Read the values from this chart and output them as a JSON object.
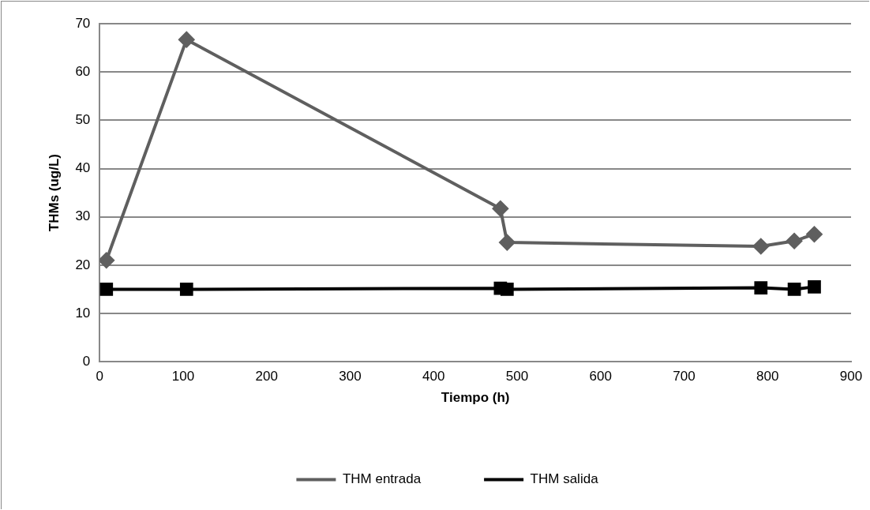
{
  "chart_data": {
    "type": "line",
    "xlabel": "Tiempo (h)",
    "ylabel": "THMs (ug/L)",
    "xlim": [
      0,
      900
    ],
    "xticks": [
      0,
      100,
      200,
      300,
      400,
      500,
      600,
      700,
      800,
      900
    ],
    "ylim": [
      0,
      70
    ],
    "yticks": [
      0,
      10,
      20,
      30,
      40,
      50,
      60,
      70
    ],
    "grid": "y",
    "legend": "bottom",
    "line_style": "solid",
    "series": [
      {
        "name": "THM entrada",
        "color": "#5f5f5f",
        "marker": "diamond",
        "x": [
          8,
          104,
          480,
          488,
          792,
          832,
          856
        ],
        "values": [
          21,
          66.7,
          31.7,
          24.7,
          23.9,
          25,
          26.4
        ]
      },
      {
        "name": "THM salida",
        "color": "#000000",
        "marker": "square",
        "x": [
          8,
          104,
          480,
          488,
          792,
          832,
          856
        ],
        "values": [
          15,
          15,
          15.2,
          15,
          15.3,
          15,
          15.5
        ]
      }
    ]
  }
}
